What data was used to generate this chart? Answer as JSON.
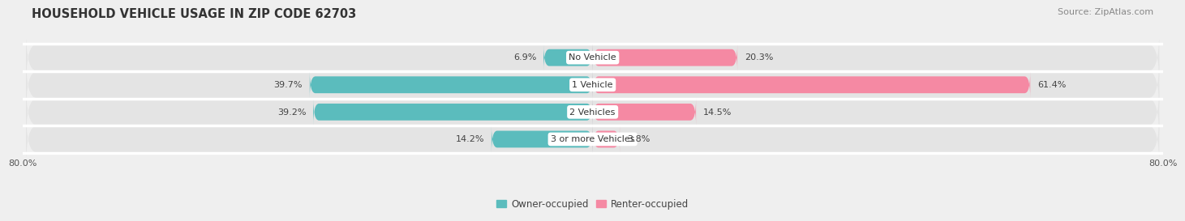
{
  "title": "HOUSEHOLD VEHICLE USAGE IN ZIP CODE 62703",
  "source": "Source: ZipAtlas.com",
  "categories": [
    "No Vehicle",
    "1 Vehicle",
    "2 Vehicles",
    "3 or more Vehicles"
  ],
  "owner_values": [
    6.9,
    39.7,
    39.2,
    14.2
  ],
  "renter_values": [
    20.3,
    61.4,
    14.5,
    3.8
  ],
  "owner_color": "#5bbcbd",
  "renter_color": "#f589a3",
  "background_color": "#efefef",
  "row_bg_color": "#e4e4e4",
  "xlim_left": -80,
  "xlim_right": 80,
  "bar_height": 0.62,
  "title_fontsize": 10.5,
  "source_fontsize": 8,
  "label_fontsize": 8,
  "legend_fontsize": 8.5,
  "xticklabels": [
    "80.0%",
    "80.0%"
  ]
}
